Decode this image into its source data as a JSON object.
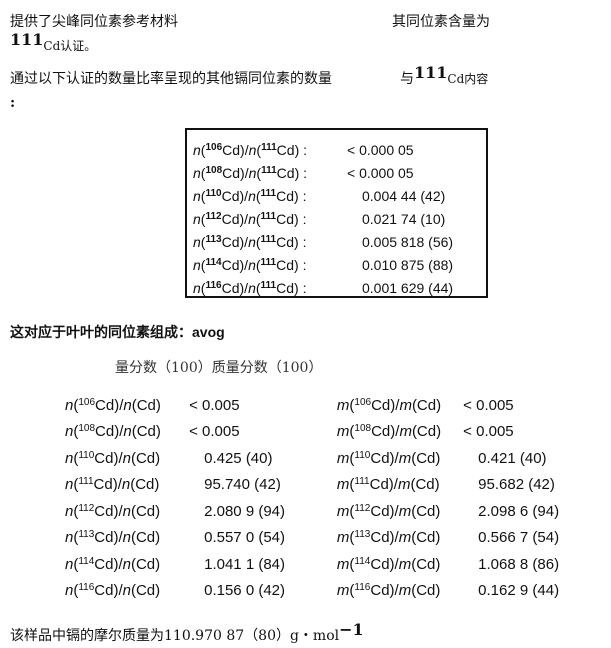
{
  "intro": {
    "line1_left": "提供了尖峰同位素参考材料",
    "line1_right": "其同位素含量为",
    "line2_mass": "111",
    "line2_text": "Cd认证。",
    "line3_left": "通过以下认证的数量比率呈现的其他镉同位素的数量",
    "line3_right_prefix": "与",
    "line3_right_mass": "111",
    "line3_right_suffix": "Cd内容",
    "line4": ":"
  },
  "ratio_box": [
    {
      "iso": "106",
      "ref": "111",
      "value": "< 0.000 05"
    },
    {
      "iso": "108",
      "ref": "111",
      "value": "< 0.000 05"
    },
    {
      "iso": "110",
      "ref": "111",
      "value": "0.004 44 (42)"
    },
    {
      "iso": "112",
      "ref": "111",
      "value": "0.021 74 (10)"
    },
    {
      "iso": "113",
      "ref": "111",
      "value": "0.005 818 (56)"
    },
    {
      "iso": "114",
      "ref": "111",
      "value": "0.010 875 (88)"
    },
    {
      "iso": "116",
      "ref": "111",
      "value": "0.001 629 (44)"
    }
  ],
  "composition_heading": "这对应于叶叶的同位素组成：",
  "composition_heading_suffix": "avog",
  "column_headers": "量分数（100）质量分数（100）",
  "composition": [
    {
      "iso": "106",
      "n_value": "< 0.005",
      "m_value": "< 0.005"
    },
    {
      "iso": "108",
      "n_value": "< 0.005",
      "m_value": "< 0.005"
    },
    {
      "iso": "110",
      "n_value": "0.425 (40)",
      "m_value": "0.421 (40)"
    },
    {
      "iso": "111",
      "n_value": "95.740 (42)",
      "m_value": "95.682 (42)"
    },
    {
      "iso": "112",
      "n_value": "2.080 9 (94)",
      "m_value": "2.098 6 (94)"
    },
    {
      "iso": "113",
      "n_value": "0.557 0 (54)",
      "m_value": "0.566 7 (54)"
    },
    {
      "iso": "114",
      "n_value": "1.041 1 (84)",
      "m_value": "1.068 8 (86)"
    },
    {
      "iso": "116",
      "n_value": "0.156 0 (42)",
      "m_value": "0.162 9 (44)"
    }
  ],
  "molar_mass": {
    "text": "该样品中镉的摩尔质量为110.970 87（80）g・mol",
    "exp": "−1"
  }
}
